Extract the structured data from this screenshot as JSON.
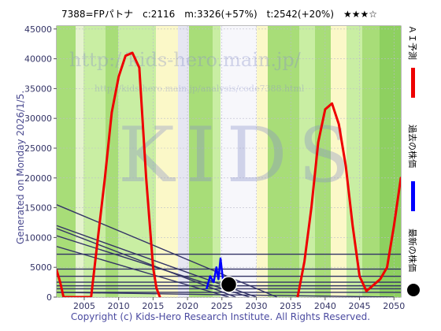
{
  "chart_data": {
    "type": "line",
    "title": "7388=FPパトナ　c:2116　m:3326(+57%)　t:2542(+20%)　★★★☆",
    "side_label": "Generated on Monday 2026/1/5.",
    "footer": "Copyright (c) Kids-Hero Research Institute. All Rights Reserved.",
    "watermark_url1": "http://kids-hero.main.jp/",
    "watermark_url2": "http://kids-hero.main.jp/analysis/code7388.html",
    "watermark_logo": "KIDS",
    "xlim": [
      2001,
      2051
    ],
    "ylim": [
      0,
      45500
    ],
    "x_ticks": [
      2005,
      2010,
      2015,
      2020,
      2025,
      2030,
      2035,
      2040,
      2045,
      2050
    ],
    "y_ticks": [
      0,
      5000,
      10000,
      15000,
      20000,
      25000,
      30000,
      35000,
      40000,
      45000
    ],
    "legend": [
      {
        "label": "ＡＩ予測",
        "color": "#ee0000"
      },
      {
        "label": "過去の株価",
        "color": "#0000ff"
      },
      {
        "label": "最新の株価",
        "color": "#000000"
      }
    ],
    "series": [
      {
        "name": "ＡＩ予測",
        "color": "#ee0000",
        "x": [
          2001,
          2001.5,
          2002,
          2003,
          2004,
          2005,
          2006,
          2007,
          2008,
          2009,
          2010,
          2011,
          2012,
          2013,
          2014,
          2015,
          2015.5,
          2016
        ],
        "y": [
          4500,
          2500,
          0,
          0,
          0,
          0,
          0,
          10000,
          20000,
          31000,
          37000,
          40500,
          41000,
          38500,
          20000,
          5000,
          1500,
          0
        ]
      },
      {
        "name": "ＡＩ予測 (2)",
        "color": "#ee0000",
        "x": [
          2036,
          2036.5,
          2037,
          2038,
          2039,
          2040,
          2041,
          2042,
          2043,
          2044,
          2045,
          2046,
          2047,
          2048,
          2049,
          2050,
          2051
        ],
        "y": [
          0,
          3000,
          6000,
          15000,
          26000,
          31500,
          32500,
          29000,
          22000,
          12000,
          3500,
          1000,
          2000,
          3000,
          5000,
          12000,
          20000
        ]
      },
      {
        "name": "過去の株価",
        "color": "#0000ff",
        "x": [
          2022.8,
          2023.3,
          2023.8,
          2024.2,
          2024.5,
          2024.8,
          2025.2
        ],
        "y": [
          1500,
          3500,
          2500,
          5000,
          3000,
          6500,
          2500
        ]
      }
    ],
    "latest_point": {
      "x": 2026,
      "y": 2116
    },
    "horizontal_lines": [
      800,
      1400,
      1900,
      2500,
      3500,
      4700,
      7200
    ],
    "trend_lines": [
      {
        "x": [
          2001,
          2033
        ],
        "y": [
          15500,
          0
        ]
      },
      {
        "x": [
          2001,
          2030
        ],
        "y": [
          12000,
          0
        ]
      },
      {
        "x": [
          2001,
          2027
        ],
        "y": [
          11500,
          0
        ]
      },
      {
        "x": [
          2001,
          2029
        ],
        "y": [
          10300,
          0
        ]
      },
      {
        "x": [
          2001,
          2026
        ],
        "y": [
          8500,
          0
        ]
      },
      {
        "x": [
          2001,
          2050
        ],
        "y": [
          800,
          0
        ]
      }
    ]
  }
}
